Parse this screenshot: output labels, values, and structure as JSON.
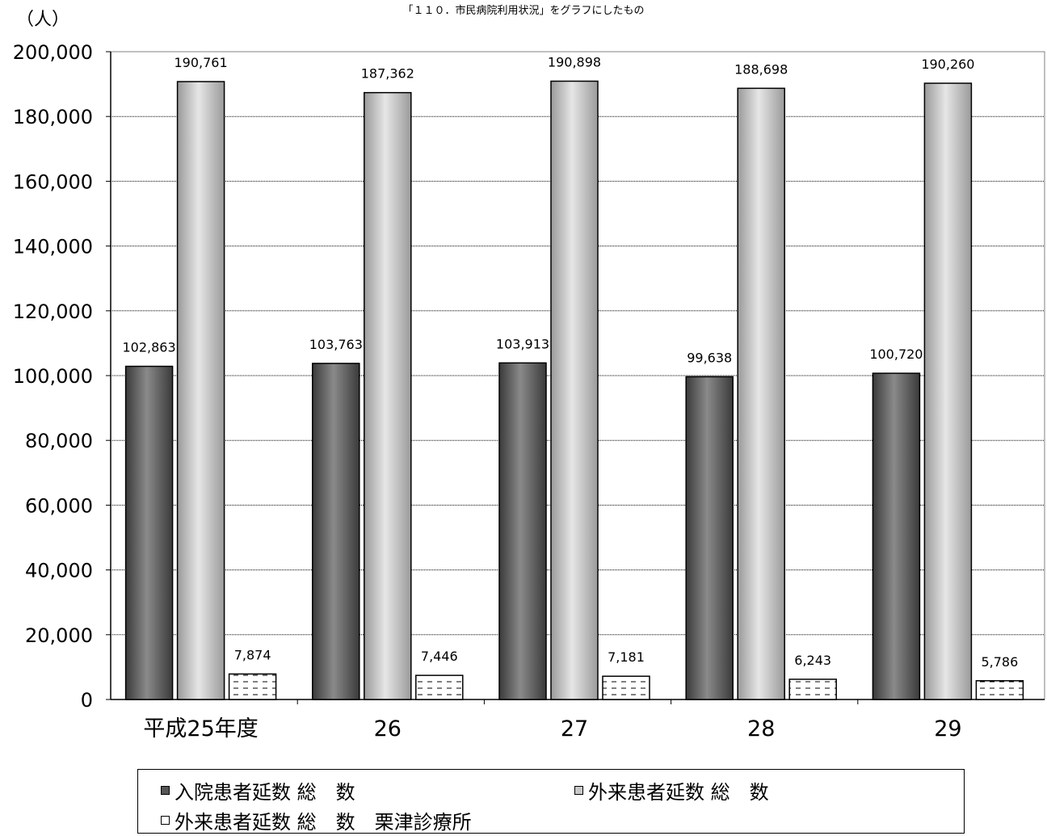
{
  "chart_data": {
    "type": "bar",
    "title": "「１１０．市民病院利用状況」をグラフにしたもの",
    "ylabel": "（人）",
    "xlabel": "",
    "categories": [
      "平成25年度",
      "26",
      "27",
      "28",
      "29"
    ],
    "series": [
      {
        "name": "入院患者延数 総　数",
        "values": [
          102863,
          103763,
          103913,
          99638,
          100720
        ],
        "value_labels": [
          "102,863",
          "103,763",
          "103,913",
          "99,638",
          "100,720"
        ],
        "color": "#6e6e6e"
      },
      {
        "name": "外来患者延数 総　数",
        "values": [
          190761,
          187362,
          190898,
          188698,
          190260
        ],
        "value_labels": [
          "190,761",
          "187,362",
          "190,898",
          "188,698",
          "190,260"
        ],
        "color": "#c8c8c8"
      },
      {
        "name": "外来患者延数 総　数　栗津診療所",
        "values": [
          7874,
          7446,
          7181,
          6243,
          5786
        ],
        "value_labels": [
          "7,874",
          "7,446",
          "7,181",
          "6,243",
          "5,786"
        ],
        "color": "#ffffff"
      }
    ],
    "ylim": [
      0,
      200000
    ],
    "yticks": [
      0,
      20000,
      40000,
      60000,
      80000,
      100000,
      120000,
      140000,
      160000,
      180000,
      200000
    ],
    "ytick_labels": [
      "0",
      "20,000",
      "40,000",
      "60,000",
      "80,000",
      "100,000",
      "120,000",
      "140,000",
      "160,000",
      "180,000",
      "200,000"
    ],
    "grid": true,
    "legend_position": "bottom"
  }
}
